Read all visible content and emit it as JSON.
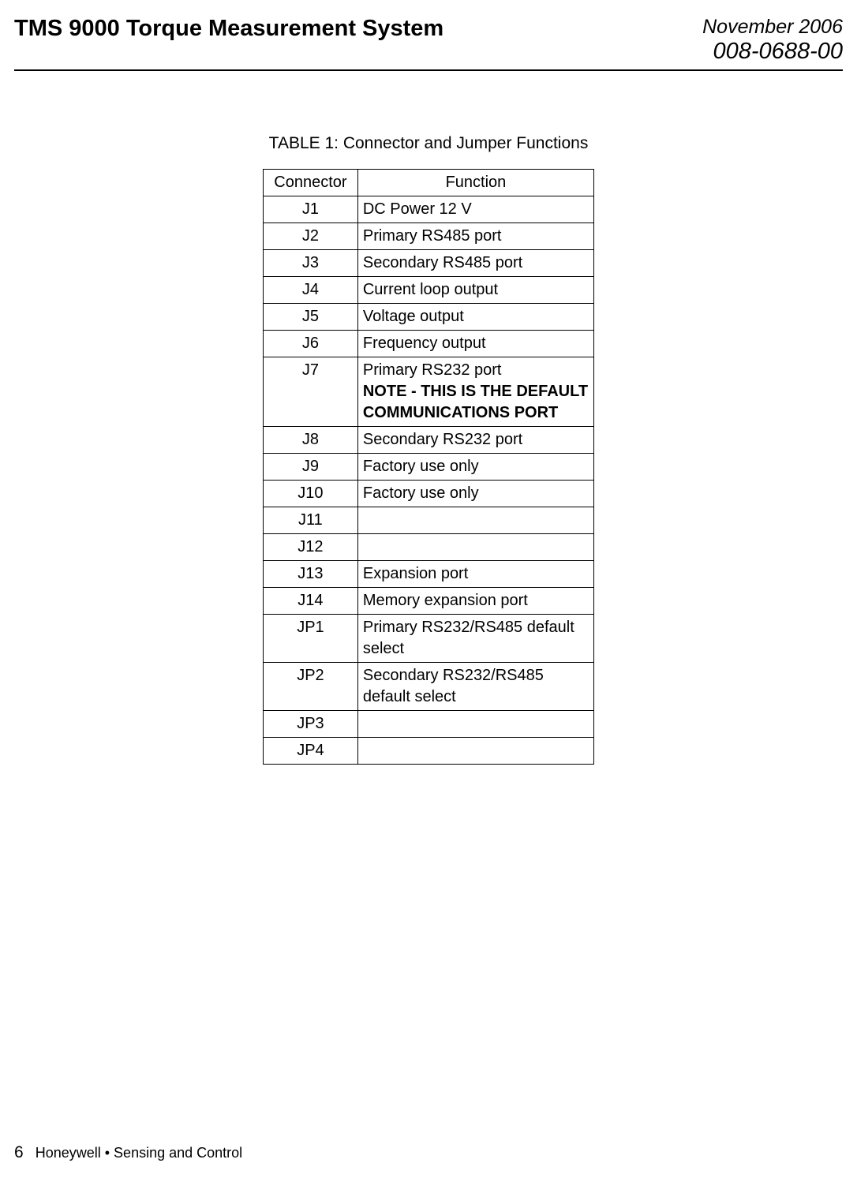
{
  "header": {
    "title": "TMS 9000 Torque Measurement System",
    "date": "November 2006",
    "docnum": "008-0688-00"
  },
  "table": {
    "caption": "TABLE 1:  Connector and Jumper Functions",
    "columns": {
      "connector": "Connector",
      "function": "Function"
    },
    "rows": [
      {
        "connector": "J1",
        "function": "DC Power 12 V",
        "note": ""
      },
      {
        "connector": "J2",
        "function": "Primary RS485 port",
        "note": ""
      },
      {
        "connector": "J3",
        "function": "Secondary RS485 port",
        "note": ""
      },
      {
        "connector": "J4",
        "function": "Current loop output",
        "note": ""
      },
      {
        "connector": "J5",
        "function": "Voltage output",
        "note": ""
      },
      {
        "connector": "J6",
        "function": "Frequency output",
        "note": ""
      },
      {
        "connector": "J7",
        "function": "Primary RS232 port",
        "note": "NOTE - THIS IS THE DEFAULT COMMUNICATIONS PORT"
      },
      {
        "connector": "J8",
        "function": "Secondary RS232 port",
        "note": ""
      },
      {
        "connector": "J9",
        "function": "Factory use only",
        "note": ""
      },
      {
        "connector": "J10",
        "function": "Factory use only",
        "note": ""
      },
      {
        "connector": "J11",
        "function": "",
        "note": ""
      },
      {
        "connector": "J12",
        "function": "",
        "note": ""
      },
      {
        "connector": "J13",
        "function": "Expansion port",
        "note": ""
      },
      {
        "connector": "J14",
        "function": "Memory expansion port",
        "note": ""
      },
      {
        "connector": "JP1",
        "function": "Primary RS232/RS485 default select",
        "note": ""
      },
      {
        "connector": "JP2",
        "function": "Secondary RS232/RS485 default select",
        "note": ""
      },
      {
        "connector": "JP3",
        "function": "",
        "note": ""
      },
      {
        "connector": "JP4",
        "function": "",
        "note": ""
      }
    ]
  },
  "footer": {
    "page": "6",
    "text": "Honeywell • Sensing and Control"
  },
  "styles": {
    "background_color": "#ffffff",
    "text_color": "#000000",
    "border_color": "#000000",
    "title_fontsize": 29,
    "date_fontsize": 25,
    "table_fontsize": 20,
    "caption_fontsize": 21,
    "footer_fontsize": 18
  }
}
